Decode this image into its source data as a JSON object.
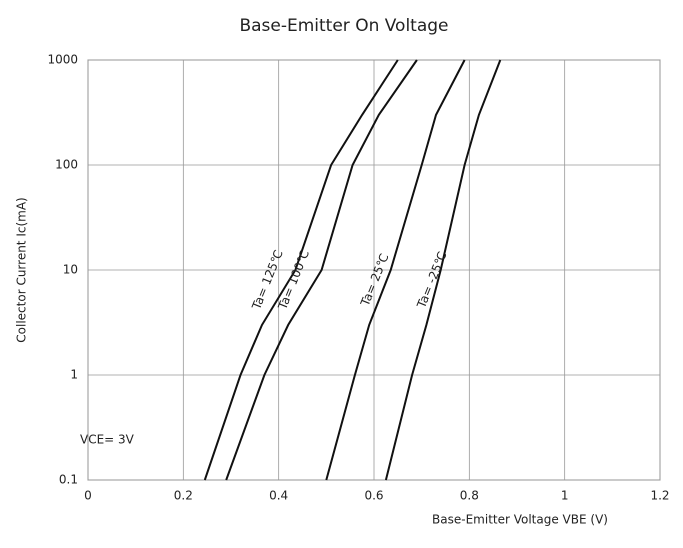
{
  "chart_data": {
    "type": "line",
    "title": "Base-Emitter On Voltage",
    "x_label": "Base-Emitter Voltage VBE (V)",
    "y_label": "Collector Current Ic(mA)",
    "annotation": "VCE= 3V",
    "log_y": true,
    "grid": true,
    "xlim": [
      0,
      1.2
    ],
    "xticks": [
      0,
      0.2,
      0.4,
      0.6,
      0.8,
      1,
      1.2
    ],
    "ylim": [
      0.1,
      1000
    ],
    "yticks": [
      0.1,
      1,
      10,
      100,
      1000
    ],
    "series": [
      {
        "name": "Ta= 125℃",
        "color": "#111111",
        "x": [
          0.245,
          0.32,
          0.365,
          0.435,
          0.51,
          0.575,
          0.65
        ],
        "values": [
          0.1,
          1,
          3,
          10,
          100,
          300,
          1000
        ]
      },
      {
        "name": "Ta= 100℃",
        "color": "#111111",
        "x": [
          0.29,
          0.37,
          0.42,
          0.49,
          0.555,
          0.61,
          0.69
        ],
        "values": [
          0.1,
          1,
          3,
          10,
          100,
          300,
          1000
        ]
      },
      {
        "name": "Ta= 25℃",
        "color": "#111111",
        "x": [
          0.5,
          0.56,
          0.59,
          0.635,
          0.7,
          0.73,
          0.79
        ],
        "values": [
          0.1,
          1,
          3,
          10,
          100,
          300,
          1000
        ]
      },
      {
        "name": "Ta= -25℃",
        "color": "#111111",
        "x": [
          0.625,
          0.68,
          0.71,
          0.74,
          0.79,
          0.82,
          0.865
        ],
        "values": [
          0.1,
          1,
          3,
          10,
          100,
          300,
          1000
        ]
      }
    ]
  }
}
